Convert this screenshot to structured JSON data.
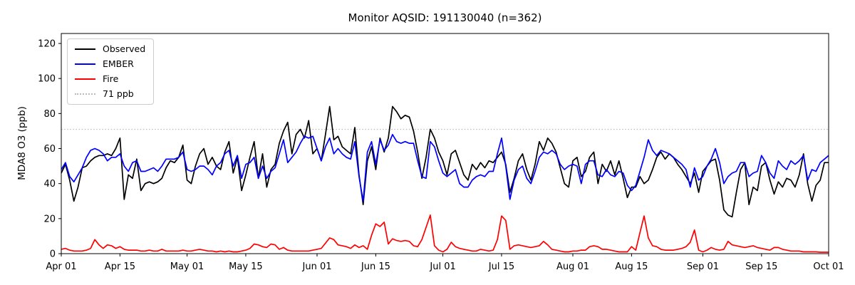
{
  "chart_data": {
    "type": "line",
    "title": "Monitor AQSID: 191130040 (n=362)",
    "xlabel": "",
    "ylabel": "MDA8 O3 (ppb)",
    "x_unit": "daily values, days since Apr 01",
    "n_points": 184,
    "x_start_label": "Apr 01",
    "x_end_label": "Oct 01",
    "ylim": [
      0,
      125.7
    ],
    "yticks": [
      0,
      20,
      40,
      60,
      80,
      100,
      120
    ],
    "xticks": [
      {
        "day": 0,
        "label": "Apr 01"
      },
      {
        "day": 14,
        "label": "Apr 15"
      },
      {
        "day": 30,
        "label": "May 01"
      },
      {
        "day": 44,
        "label": "May 15"
      },
      {
        "day": 61,
        "label": "Jun 01"
      },
      {
        "day": 75,
        "label": "Jun 15"
      },
      {
        "day": 91,
        "label": "Jul 01"
      },
      {
        "day": 105,
        "label": "Jul 15"
      },
      {
        "day": 122,
        "label": "Aug 01"
      },
      {
        "day": 136,
        "label": "Aug 15"
      },
      {
        "day": 153,
        "label": "Sep 01"
      },
      {
        "day": 167,
        "label": "Sep 15"
      },
      {
        "day": 183,
        "label": "Oct 01"
      }
    ],
    "grid": false,
    "legend_position": "upper left",
    "reference_line": {
      "label": "71 ppb",
      "value": 71,
      "color": "#bbbbbb",
      "style": "dotted"
    },
    "series": [
      {
        "name": "Observed",
        "color": "#000000",
        "style": "solid",
        "values": [
          46,
          51,
          42,
          30,
          38,
          49,
          50,
          53,
          55,
          56,
          56,
          57,
          56,
          60,
          66,
          31,
          45,
          43,
          54,
          36,
          40,
          41,
          40,
          41,
          43,
          49,
          53,
          52,
          55,
          62,
          42,
          40,
          50,
          57,
          60,
          51,
          55,
          50,
          48,
          58,
          64,
          46,
          55,
          36,
          45,
          55,
          64,
          43,
          57,
          38,
          48,
          51,
          63,
          70,
          75,
          57,
          68,
          71,
          66,
          76,
          57,
          60,
          53,
          68,
          84,
          65,
          67,
          61,
          59,
          57,
          72,
          45,
          28,
          53,
          61,
          48,
          66,
          58,
          66,
          84,
          81,
          77,
          79,
          78,
          70,
          58,
          43,
          55,
          71,
          66,
          58,
          53,
          45,
          57,
          59,
          52,
          45,
          42,
          51,
          48,
          52,
          49,
          53,
          52,
          55,
          58,
          51,
          35,
          43,
          53,
          57,
          48,
          42,
          51,
          64,
          59,
          66,
          63,
          58,
          49,
          40,
          38,
          53,
          55,
          44,
          47,
          55,
          58,
          40,
          51,
          47,
          53,
          45,
          53,
          43,
          32,
          38,
          38,
          44,
          40,
          42,
          48,
          55,
          58,
          54,
          57,
          55,
          51,
          48,
          44,
          40,
          46,
          35,
          47,
          50,
          53,
          54,
          42,
          25,
          22,
          21,
          35,
          48,
          52,
          28,
          38,
          36,
          50,
          52,
          42,
          34,
          41,
          38,
          43,
          42,
          38,
          45,
          57,
          40,
          30,
          39,
          42,
          52,
          52
        ]
      },
      {
        "name": "EMBER",
        "color": "#0000ff",
        "style": "solid",
        "values": [
          48,
          52,
          44,
          41,
          45,
          49,
          55,
          59,
          60,
          59,
          57,
          53,
          55,
          55,
          57,
          50,
          47,
          52,
          53,
          47,
          47,
          48,
          49,
          47,
          50,
          54,
          54,
          54,
          55,
          58,
          48,
          47,
          48,
          50,
          50,
          48,
          45,
          50,
          52,
          57,
          59,
          50,
          56,
          43,
          51,
          52,
          55,
          43,
          50,
          43,
          47,
          49,
          57,
          65,
          52,
          55,
          58,
          63,
          67,
          66,
          67,
          60,
          53,
          61,
          66,
          57,
          60,
          57,
          55,
          54,
          64,
          44,
          30,
          58,
          64,
          51,
          65,
          59,
          62,
          68,
          64,
          63,
          64,
          63,
          63,
          53,
          44,
          43,
          64,
          61,
          53,
          46,
          44,
          46,
          48,
          40,
          38,
          38,
          42,
          44,
          45,
          44,
          47,
          47,
          57,
          66,
          50,
          31,
          42,
          48,
          50,
          43,
          40,
          47,
          55,
          58,
          57,
          59,
          57,
          51,
          48,
          50,
          51,
          50,
          40,
          51,
          53,
          53,
          45,
          44,
          48,
          45,
          44,
          47,
          46,
          39,
          36,
          39,
          47,
          55,
          65,
          59,
          56,
          59,
          58,
          57,
          55,
          53,
          51,
          48,
          38,
          49,
          42,
          44,
          50,
          54,
          60,
          52,
          40,
          44,
          46,
          47,
          52,
          52,
          44,
          46,
          47,
          56,
          52,
          46,
          43,
          53,
          50,
          48,
          53,
          51,
          53,
          56,
          42,
          48,
          47,
          52,
          54,
          56
        ]
      },
      {
        "name": "Fire",
        "color": "#ff0000",
        "style": "solid",
        "values": [
          2.5,
          3,
          2,
          1.5,
          1.5,
          1.5,
          2,
          3,
          8,
          5,
          3,
          5,
          4.5,
          3,
          4,
          2.5,
          2,
          2,
          2,
          1.5,
          1.5,
          2,
          1.5,
          1.5,
          2.5,
          1.5,
          1.5,
          1.5,
          1.5,
          2,
          1.5,
          1.5,
          2,
          2.5,
          2,
          1.5,
          1.5,
          1,
          1.5,
          1,
          1.5,
          1,
          1,
          1.5,
          2,
          3,
          5.5,
          5,
          4,
          3.5,
          5.5,
          5,
          2.5,
          3.5,
          2,
          1.5,
          1.5,
          1.5,
          1.5,
          1.5,
          2,
          2.5,
          3,
          6,
          9,
          8,
          5,
          4.5,
          4,
          3,
          5,
          3.5,
          4.5,
          2.5,
          10.5,
          17,
          15.5,
          18,
          5.5,
          8.5,
          7.5,
          7,
          7.5,
          7,
          4.5,
          4,
          8,
          15,
          22,
          4.5,
          2,
          1,
          2.5,
          6.5,
          4,
          3,
          2.5,
          2,
          1.5,
          1.5,
          2.5,
          2,
          1.5,
          2,
          8,
          21.5,
          19,
          2.5,
          4.5,
          5,
          4.5,
          4,
          3.5,
          4,
          4.5,
          7,
          5,
          2.5,
          2,
          1.5,
          1,
          1,
          1.5,
          1.5,
          2,
          2,
          4,
          4.5,
          4,
          2.5,
          2.5,
          2,
          1.5,
          1,
          1,
          1,
          4,
          2,
          12,
          21.5,
          9,
          4.5,
          4,
          2.5,
          2,
          2,
          2,
          2.5,
          3,
          4,
          6.5,
          13.5,
          2,
          1,
          2,
          3.5,
          2.5,
          2,
          2.5,
          7,
          5,
          4.5,
          4,
          3.5,
          4,
          4.5,
          3.5,
          3,
          2.5,
          2,
          3.5,
          3.5,
          2.5,
          2,
          1.5,
          1.5,
          1.5,
          1,
          1,
          1,
          1,
          0.8,
          0.8,
          0.8
        ]
      }
    ]
  }
}
